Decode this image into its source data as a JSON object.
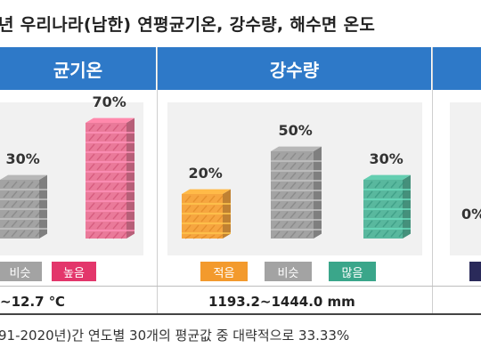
{
  "title": "년 우리나라(남한) 연평균기온, 강수량, 해수면 온도",
  "panels": [
    {
      "header": "균기온",
      "range": "~12.7 ℃",
      "bars": [
        {
          "label": "비슷",
          "value": 30,
          "value_label": "30%",
          "color": "#a3a3a3",
          "stripe": "#7a7a7a",
          "chip": "#a3a3a3"
        },
        {
          "label": "높음",
          "value": 70,
          "value_label": "70%",
          "color": "#ea7a9a",
          "stripe": "#c9476b",
          "chip": "#e3366b"
        }
      ]
    },
    {
      "header": "강수량",
      "range": "1193.2~1444.0 mm",
      "bars": [
        {
          "label": "적음",
          "value": 20,
          "value_label": "20%",
          "color": "#f6a640",
          "stripe": "#d98120",
          "chip": "#f39a2d"
        },
        {
          "label": "비슷",
          "value": 50,
          "value_label": "50%",
          "color": "#a3a3a3",
          "stripe": "#7a7a7a",
          "chip": "#a3a3a3"
        },
        {
          "label": "많음",
          "value": 30,
          "value_label": "30%",
          "color": "#59b89e",
          "stripe": "#2e8f78",
          "chip": "#3aa68a"
        }
      ]
    },
    {
      "header": "",
      "bars": [
        {
          "label": "",
          "value": 0,
          "value_label": "0%"
        }
      ]
    }
  ],
  "chart_data": [
    {
      "type": "bar",
      "title": "균기온",
      "categories": [
        "비슷",
        "높음"
      ],
      "values": [
        30,
        70
      ],
      "unit": "%",
      "range_text": "~12.7 ℃"
    },
    {
      "type": "bar",
      "title": "강수량",
      "categories": [
        "적음",
        "비슷",
        "많음"
      ],
      "values": [
        20,
        50,
        30
      ],
      "unit": "%",
      "range_text": "1193.2~1444.0 mm"
    }
  ],
  "footnote": "91-2020년)간 연도별 30개의 평균값 중 대략적으로 33.33%"
}
